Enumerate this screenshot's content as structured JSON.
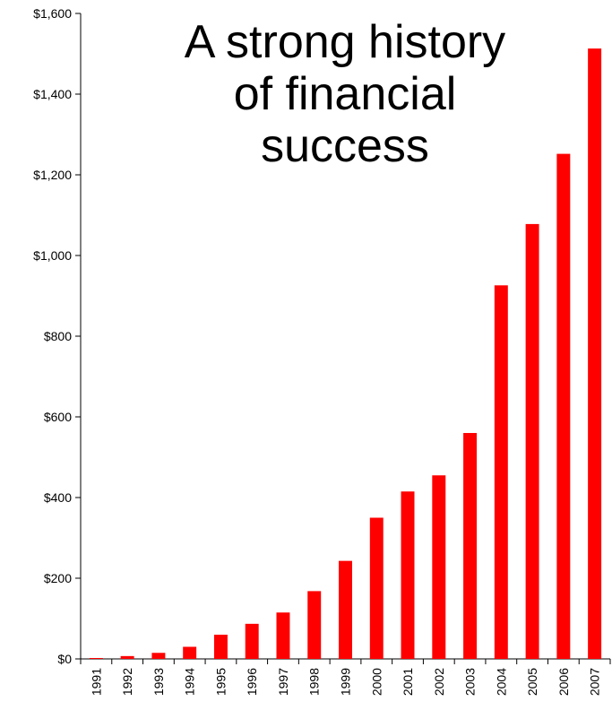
{
  "chart_data": {
    "type": "bar",
    "title": "A strong history\nof financial\nsuccess",
    "xlabel": "",
    "ylabel": "",
    "categories": [
      "1991",
      "1992",
      "1993",
      "1994",
      "1995",
      "1996",
      "1997",
      "1998",
      "1999",
      "2000",
      "2001",
      "2002",
      "2003",
      "2004",
      "2005",
      "2006",
      "2007"
    ],
    "values": [
      2,
      7,
      15,
      30,
      60,
      87,
      115,
      168,
      243,
      350,
      415,
      455,
      560,
      926,
      1078,
      1252,
      1513
    ],
    "ylim": [
      0,
      1600
    ],
    "yticks": [
      0,
      200,
      400,
      600,
      800,
      1000,
      1200,
      1400,
      1600
    ],
    "ytick_labels": [
      "$0",
      "$200",
      "$400",
      "$600",
      "$800",
      "$1,000",
      "$1,200",
      "$1,400",
      "$1,600"
    ],
    "grid": false,
    "legend": "none",
    "colors": {
      "bar": "#ff0000",
      "axis": "#000000"
    }
  }
}
